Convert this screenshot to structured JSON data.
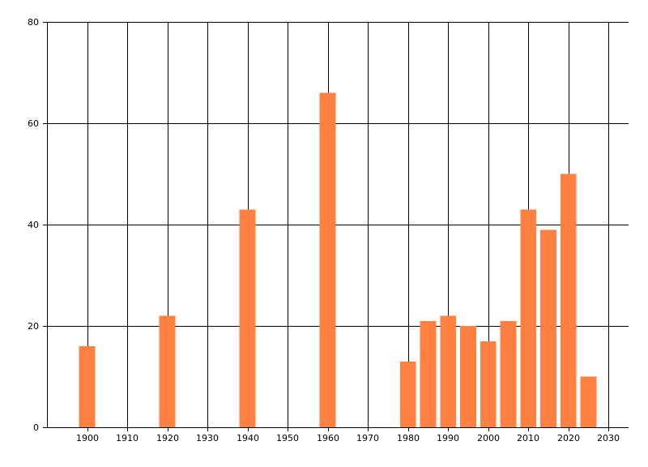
{
  "chart_data": {
    "type": "bar",
    "x": [
      1900,
      1920,
      1940,
      1960,
      1980,
      1985,
      1990,
      1995,
      2000,
      2005,
      2010,
      2015,
      2020,
      2025
    ],
    "values": [
      16,
      22,
      43,
      66,
      13,
      21,
      22,
      20,
      17,
      21,
      43,
      39,
      50,
      10
    ],
    "xlim": [
      1890,
      2035
    ],
    "ylim": [
      0,
      80
    ],
    "xticks": [
      1900,
      1910,
      1920,
      1930,
      1940,
      1950,
      1960,
      1970,
      1980,
      1990,
      2000,
      2010,
      2020,
      2030
    ],
    "yticks": [
      0,
      20,
      40,
      60,
      80
    ],
    "xtick_labels": [
      "1900",
      "1910",
      "1920",
      "1930",
      "1940",
      "1950",
      "1960",
      "1970",
      "1980",
      "1990",
      "2000",
      "2010",
      "2020",
      "2030"
    ],
    "ytick_labels": [
      "0",
      "20",
      "40",
      "60",
      "80"
    ],
    "bar_width_years": 4,
    "grid": true,
    "bar_color": "#ff8040",
    "title": "",
    "xlabel": "",
    "ylabel": ""
  }
}
